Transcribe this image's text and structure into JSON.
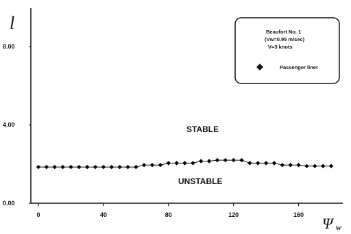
{
  "chart_data": {
    "type": "line",
    "ylabel": "l",
    "xlabel_main": "Ψ",
    "xlabel_sub": "w",
    "xlim": [
      0,
      180
    ],
    "ylim": [
      0,
      10
    ],
    "x_ticks": [
      "0",
      "40",
      "80",
      "120",
      "160"
    ],
    "x_tick_values": [
      0,
      40,
      80,
      120,
      160
    ],
    "y_ticks": [
      "0.00",
      "4.00",
      "8.00"
    ],
    "y_tick_values": [
      0,
      4,
      8
    ],
    "annotations": {
      "upper": "STABLE",
      "lower": "UNSTABLE"
    },
    "legend": {
      "line1": "Beaufort No. 1",
      "line2": "(Vw=0.95 m/sec)",
      "line3": "V=3 knots",
      "series_label": "Passenger liner"
    },
    "series": [
      {
        "name": "Passenger liner",
        "color": "#000000",
        "marker": "diamond",
        "x": [
          0,
          5,
          10,
          15,
          20,
          25,
          30,
          35,
          40,
          45,
          50,
          55,
          60,
          65,
          70,
          75,
          80,
          85,
          90,
          95,
          100,
          105,
          110,
          115,
          120,
          125,
          130,
          135,
          140,
          145,
          150,
          155,
          160,
          165,
          170,
          175,
          180
        ],
        "y": [
          1.85,
          1.85,
          1.85,
          1.85,
          1.85,
          1.85,
          1.85,
          1.85,
          1.85,
          1.85,
          1.85,
          1.85,
          1.85,
          1.95,
          1.95,
          1.95,
          2.05,
          2.05,
          2.05,
          2.05,
          2.15,
          2.15,
          2.2,
          2.2,
          2.2,
          2.2,
          2.05,
          2.05,
          2.05,
          2.05,
          1.95,
          1.95,
          1.95,
          1.9,
          1.9,
          1.9,
          1.9
        ]
      }
    ]
  }
}
